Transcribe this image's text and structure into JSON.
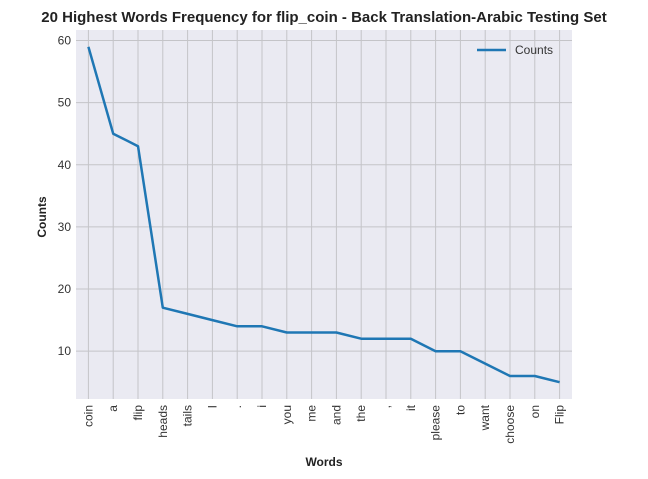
{
  "chart_data": {
    "type": "line",
    "title": "20 Highest Words Frequency for flip_coin - Back Translation-Arabic Testing Set",
    "xlabel": "Words",
    "ylabel": "Counts",
    "categories": [
      "coin",
      "a",
      "flip",
      "heads",
      "tails",
      "I",
      ".",
      "i",
      "you",
      "me",
      "and",
      "the",
      ",",
      "it",
      "please",
      "to",
      "want",
      "choose",
      "on",
      "Flip"
    ],
    "series": [
      {
        "name": "Counts",
        "values": [
          59,
          45,
          43,
          17,
          16,
          15,
          14,
          14,
          13,
          13,
          13,
          12,
          12,
          12,
          10,
          10,
          8,
          6,
          6,
          5
        ]
      }
    ],
    "ylim": [
      2.3,
      61.7
    ],
    "yticks": [
      10,
      20,
      30,
      40,
      50,
      60
    ],
    "grid": true,
    "legend_position": "top-right",
    "colors": {
      "background": "#eaeaf2",
      "grid": "#c4c4c8",
      "line": "#1f77b4"
    }
  }
}
